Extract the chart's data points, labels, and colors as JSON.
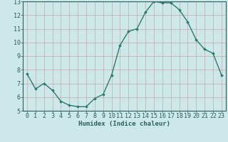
{
  "x": [
    0,
    1,
    2,
    3,
    4,
    5,
    6,
    7,
    8,
    9,
    10,
    11,
    12,
    13,
    14,
    15,
    16,
    17,
    18,
    19,
    20,
    21,
    22,
    23
  ],
  "y": [
    7.7,
    6.6,
    7.0,
    6.5,
    5.7,
    5.4,
    5.3,
    5.3,
    5.9,
    6.2,
    7.6,
    9.8,
    10.8,
    11.0,
    12.2,
    13.0,
    12.9,
    12.9,
    12.4,
    11.5,
    10.2,
    9.5,
    9.2,
    7.6
  ],
  "line_color": "#2d7a6e",
  "marker": "D",
  "marker_size": 2.0,
  "bg_color": "#cce8e8",
  "grid_color_v": "#c8a8a8",
  "grid_color_h": "#c8a8a8",
  "xlabel": "Humidex (Indice chaleur)",
  "ylim": [
    5,
    13
  ],
  "xlim_min": -0.5,
  "xlim_max": 23.5,
  "yticks": [
    5,
    6,
    7,
    8,
    9,
    10,
    11,
    12,
    13
  ],
  "xticks": [
    0,
    1,
    2,
    3,
    4,
    5,
    6,
    7,
    8,
    9,
    10,
    11,
    12,
    13,
    14,
    15,
    16,
    17,
    18,
    19,
    20,
    21,
    22,
    23
  ],
  "tick_color": "#2d5f5a",
  "label_fontsize": 6.5,
  "tick_fontsize": 6.0,
  "spine_color": "#2d5f5a",
  "line_width": 1.0
}
